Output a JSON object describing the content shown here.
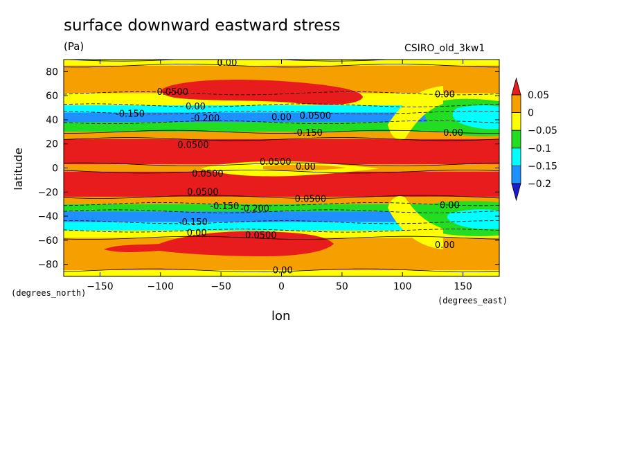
{
  "chart_data": {
    "type": "heatmap",
    "title": "surface downward eastward stress",
    "units": "(Pa)",
    "model": "CSIRO_old_3kw1",
    "xlabel": "lon",
    "ylabel": "latitude",
    "x_units": "(degrees_east)",
    "y_units": "(degrees_north)",
    "xlim": [
      -180,
      180
    ],
    "ylim": [
      -90,
      90
    ],
    "x_ticks": [
      -150,
      -100,
      -50,
      0,
      50,
      100,
      150
    ],
    "y_ticks": [
      80,
      60,
      40,
      20,
      0,
      -20,
      -40,
      -60,
      -80
    ],
    "x_tick_labels": [
      "−150",
      "−100",
      "−50",
      "0",
      "50",
      "100",
      "150"
    ],
    "y_tick_labels": [
      "80",
      "60",
      "40",
      "20",
      "0",
      "−20",
      "−40",
      "−60",
      "−80"
    ],
    "colorbar": {
      "labels": [
        "0.05",
        "0",
        "−0.05",
        "−0.1",
        "−0.15",
        "−0.2"
      ],
      "levels": [
        0.05,
        0,
        -0.05,
        -0.1,
        -0.15,
        -0.2
      ],
      "colors": [
        "#e81c1c",
        "#f5a000",
        "#ffff00",
        "#22dd22",
        "#00ffff",
        "#1e90ff",
        "#1c1cc8"
      ]
    },
    "zonal_bands": [
      {
        "lat": [
          85,
          90
        ],
        "value": 0.0
      },
      {
        "lat": [
          62,
          85
        ],
        "value": 0.02
      },
      {
        "lat": [
          52,
          62
        ],
        "value": -0.04
      },
      {
        "lat": [
          46,
          52
        ],
        "value": -0.1
      },
      {
        "lat": [
          38,
          46
        ],
        "value": -0.18
      },
      {
        "lat": [
          30,
          38
        ],
        "value": -0.08
      },
      {
        "lat": [
          24,
          30
        ],
        "value": 0.02
      },
      {
        "lat": [
          3,
          24
        ],
        "value": 0.06
      },
      {
        "lat": [
          -3,
          3
        ],
        "value": 0.02
      },
      {
        "lat": [
          -24,
          -3
        ],
        "value": 0.06
      },
      {
        "lat": [
          -30,
          -24
        ],
        "value": 0.02
      },
      {
        "lat": [
          -36,
          -30
        ],
        "value": -0.06
      },
      {
        "lat": [
          -45,
          -36
        ],
        "value": -0.18
      },
      {
        "lat": [
          -52,
          -45
        ],
        "value": -0.1
      },
      {
        "lat": [
          -58,
          -52
        ],
        "value": -0.04
      },
      {
        "lat": [
          -85,
          -58
        ],
        "value": 0.02
      },
      {
        "lat": [
          -90,
          -85
        ],
        "value": 0.0
      }
    ],
    "contour_labels": [
      {
        "text": "0.00",
        "lon": -45,
        "lat": 87
      },
      {
        "text": "0.0500",
        "lon": -90,
        "lat": 63
      },
      {
        "text": "0.00",
        "lon": -71,
        "lat": 51
      },
      {
        "text": "-0.150",
        "lon": -125,
        "lat": 45
      },
      {
        "text": "-0.200",
        "lon": -63,
        "lat": 41
      },
      {
        "text": "0.00",
        "lon": 0,
        "lat": 42
      },
      {
        "text": "0.0500",
        "lon": 28,
        "lat": 43
      },
      {
        "text": "-0.150",
        "lon": 22,
        "lat": 29
      },
      {
        "text": "0.00",
        "lon": 135,
        "lat": 61
      },
      {
        "text": "0.00",
        "lon": 142,
        "lat": 29
      },
      {
        "text": "0.0500",
        "lon": -73,
        "lat": 19
      },
      {
        "text": "0.0500",
        "lon": -5,
        "lat": 5
      },
      {
        "text": "0.00",
        "lon": 20,
        "lat": 1
      },
      {
        "text": "0.0500",
        "lon": -61,
        "lat": -5
      },
      {
        "text": "0.0500",
        "lon": -65,
        "lat": -20
      },
      {
        "text": "-0.150",
        "lon": -47,
        "lat": -32
      },
      {
        "text": "-0.200",
        "lon": -22,
        "lat": -34
      },
      {
        "text": "0.0500",
        "lon": 24,
        "lat": -26
      },
      {
        "text": "0.00",
        "lon": 139,
        "lat": -31
      },
      {
        "text": "-0.150",
        "lon": -73,
        "lat": -45
      },
      {
        "text": "0.00",
        "lon": -70,
        "lat": -54
      },
      {
        "text": "0.0500",
        "lon": -17,
        "lat": -56
      },
      {
        "text": "0.00",
        "lon": 135,
        "lat": -64
      },
      {
        "text": "0.00",
        "lon": 1,
        "lat": -85
      }
    ]
  }
}
